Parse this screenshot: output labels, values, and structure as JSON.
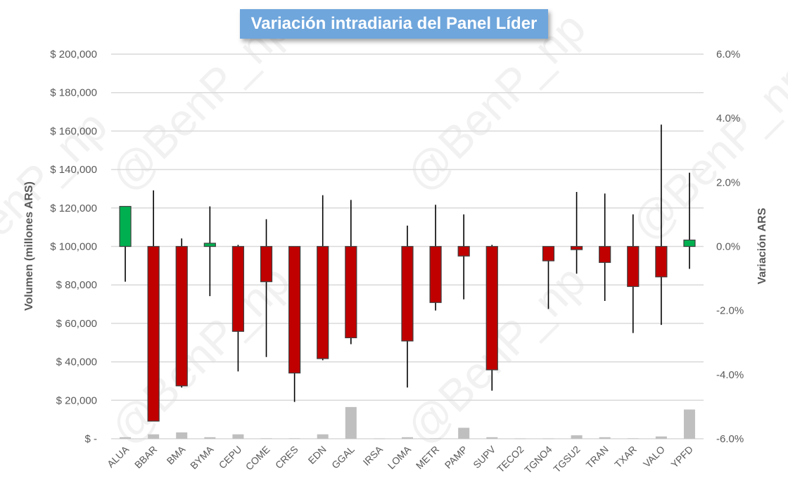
{
  "chart_data": {
    "type": "candlestick",
    "title": "Variación intradiaria del Panel Líder",
    "ylabel_left": "Volumen (millones ARS)",
    "ylabel_right": "Variación ARS",
    "left_axis": {
      "ylim": [
        0,
        200000
      ],
      "ticks": [
        {
          "value": 0,
          "label": "$ -"
        },
        {
          "value": 20000,
          "label": "$ 20,000"
        },
        {
          "value": 40000,
          "label": "$ 40,000"
        },
        {
          "value": 60000,
          "label": "$ 60,000"
        },
        {
          "value": 80000,
          "label": "$ 80,000"
        },
        {
          "value": 100000,
          "label": "$ 100,000"
        },
        {
          "value": 120000,
          "label": "$ 120,000"
        },
        {
          "value": 140000,
          "label": "$ 140,000"
        },
        {
          "value": 160000,
          "label": "$ 160,000"
        },
        {
          "value": 180000,
          "label": "$ 180,000"
        },
        {
          "value": 200000,
          "label": "$ 200,000"
        }
      ]
    },
    "right_axis": {
      "ylim": [
        -6.0,
        6.0
      ],
      "ticks": [
        {
          "value": -6,
          "label": "-6.0%"
        },
        {
          "value": -4,
          "label": "-4.0%"
        },
        {
          "value": -2,
          "label": "-2.0%"
        },
        {
          "value": 0,
          "label": "0.0%"
        },
        {
          "value": 2,
          "label": "2.0%"
        },
        {
          "value": 4,
          "label": "4.0%"
        },
        {
          "value": 6,
          "label": "6.0%"
        }
      ]
    },
    "categories": [
      "ALUA",
      "BBAR",
      "BMA",
      "BYMA",
      "CEPU",
      "COME",
      "CRES",
      "EDN",
      "GGAL",
      "IRSA",
      "LOMA",
      "METR",
      "PAMP",
      "SUPV",
      "TECO2",
      "TGNO4",
      "TGSU2",
      "TRAN",
      "TXAR",
      "VALO",
      "YPFD"
    ],
    "series": [
      {
        "name": "Variación",
        "open": [
          0,
          0,
          0,
          0,
          0,
          0,
          0,
          0,
          0,
          0,
          0,
          0,
          0,
          0,
          0,
          0,
          0,
          0,
          0,
          0,
          0
        ],
        "close": [
          1.25,
          -5.45,
          -4.35,
          0.1,
          -2.65,
          -1.1,
          -3.95,
          -3.5,
          -2.85,
          0,
          -2.95,
          -1.75,
          -0.3,
          -3.85,
          0,
          -0.45,
          -0.1,
          -0.5,
          -1.25,
          -0.95,
          0.2
        ],
        "high": [
          1.25,
          1.75,
          0.25,
          1.25,
          0.05,
          0.85,
          0,
          1.6,
          1.45,
          0,
          0.65,
          1.3,
          1.0,
          0.05,
          0,
          0,
          1.7,
          1.65,
          1.0,
          3.8,
          2.3
        ],
        "low": [
          -1.1,
          -5.45,
          -4.4,
          -1.55,
          -3.9,
          -3.45,
          -4.85,
          -3.55,
          -3.05,
          0,
          -4.4,
          -2.0,
          -1.65,
          -4.5,
          0,
          -1.95,
          -0.85,
          -1.7,
          -2.7,
          -2.45,
          -0.7
        ]
      },
      {
        "name": "Volumen",
        "values": [
          800,
          2300,
          3300,
          800,
          2300,
          200,
          200,
          2300,
          16500,
          100,
          800,
          200,
          5700,
          800,
          100,
          100,
          1800,
          800,
          200,
          1200,
          15200
        ]
      }
    ],
    "colors": {
      "up": "#00b050",
      "down": "#c00000",
      "volume": "#bfbfbf",
      "grid": "#d9d9d9",
      "wick": "#000000"
    }
  },
  "watermark": "@BenP_np"
}
